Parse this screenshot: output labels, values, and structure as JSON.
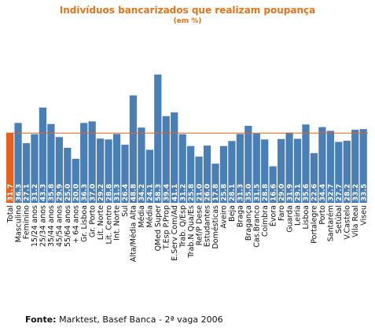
{
  "chart_data": {
    "type": "bar",
    "title": "Indivíduos bancarizados que realizam poupança",
    "subtitle": "(em %)",
    "reference_line_value": 31.7,
    "ylim": [
      0,
      60
    ],
    "categories": [
      "Total",
      "Masculino",
      "Feminino",
      "15/24 anos",
      "25/34 anos",
      "35/44 anos",
      "45/54 anos",
      "55/64 anos",
      "+ 64 anos",
      "Gr. Lisboa",
      "Gr. Porto",
      "Lit. Norte",
      "Lit. Centro",
      "Int. Norte",
      "Sul",
      "Alta/Média Alta",
      "Média",
      "Média",
      "QMed Super",
      "T.Esp P.Prop",
      "E.Serv Com/Ad",
      "Trab. Q/Esp",
      "Trab.N Qua/Es",
      "Ref/P Dese",
      "Estudantes",
      "Domésticas",
      "Aveiro",
      "Beja",
      "Braga",
      "Bragança",
      "Cas.Branco",
      "Coimbra",
      "Évora",
      "Faro",
      "Guarda",
      "Leiria",
      "Lisboa",
      "Portalegre",
      "Porto",
      "Santarém",
      "Setúbal",
      "V.Castelo",
      "Vila Real",
      "Viseu"
    ],
    "values": [
      31.7,
      36.3,
      27.1,
      31.2,
      43.3,
      35.8,
      29.9,
      25.0,
      20.0,
      36.3,
      37.0,
      29.2,
      28.8,
      31.3,
      26.4,
      48.8,
      34.2,
      24.1,
      58.3,
      39.4,
      41.1,
      31.2,
      25.8,
      21.0,
      26.0,
      17.8,
      25.8,
      28.1,
      31.3,
      35.0,
      31.5,
      28.8,
      16.6,
      29.0,
      31.9,
      29.1,
      35.6,
      22.6,
      34.4,
      32.7,
      27.7,
      28.2,
      33.2,
      33.5
    ],
    "labels": [
      "31.7",
      "36.3",
      "27.1",
      "31.2",
      "43.3",
      "35.8",
      "29.9",
      "25.0",
      "20.0",
      "36.3",
      "37.0",
      "29.2",
      "28.8",
      "31.3",
      "26.4",
      "48.8",
      "34.2",
      "24.1",
      "58.3",
      "39.4",
      "41.1",
      "31.2",
      "25.8",
      "21.0",
      "26.0",
      "17.8",
      "25.8",
      "28.1",
      "31.3",
      "35.0",
      "31.5",
      "28.8",
      "16.6",
      "29.0",
      "31.9",
      "29.1",
      "35.6",
      "22.6",
      "34.4",
      "32.7",
      "27.7",
      "28.2",
      "33.2",
      "33.5"
    ],
    "colors": {
      "highlight": "#e8611c",
      "bar": "#4a7fb6",
      "line": "#e8611c",
      "title": "#e8731c"
    }
  },
  "source": {
    "label": "Fonte:",
    "text": " Marktest, Basef Banca - 2ª vaga 2006"
  }
}
